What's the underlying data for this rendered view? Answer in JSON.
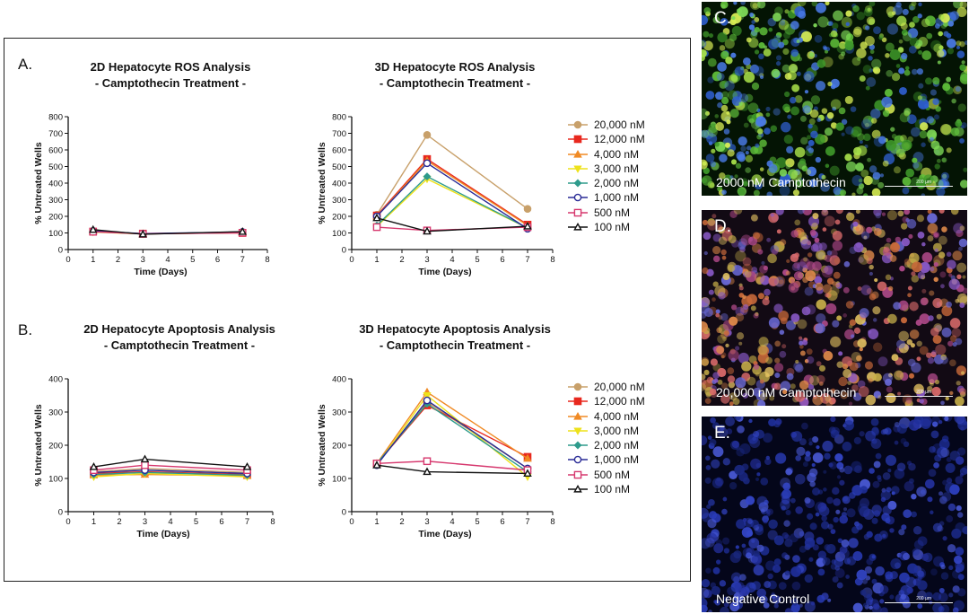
{
  "panels": {
    "a_label": "A.",
    "b_label": "B."
  },
  "chart_data": [
    {
      "id": "a2d",
      "type": "line",
      "title": "2D Hepatocyte ROS Analysis",
      "subtitle": "- Camptothecin Treatment -",
      "xlabel": "Time (Days)",
      "ylabel": "% Untreated Wells",
      "xlim": [
        0,
        8
      ],
      "ylim": [
        0,
        800
      ],
      "xticks": [
        0,
        1,
        2,
        3,
        4,
        5,
        6,
        7,
        8
      ],
      "yticks": [
        0,
        100,
        200,
        300,
        400,
        500,
        600,
        700,
        800
      ],
      "x": [
        1,
        3,
        7
      ],
      "series": [
        {
          "name": "20,000 nM",
          "values": [
            110,
            95,
            105
          ]
        },
        {
          "name": "12,000 nM",
          "values": [
            108,
            96,
            100
          ]
        },
        {
          "name": "4,000 nM",
          "values": [
            110,
            95,
            103
          ]
        },
        {
          "name": "3,000 nM",
          "values": [
            105,
            94,
            102
          ]
        },
        {
          "name": "2,000 nM",
          "values": [
            108,
            95,
            104
          ]
        },
        {
          "name": "1,000 nM",
          "values": [
            112,
            96,
            106
          ]
        },
        {
          "name": "500 nM",
          "values": [
            107,
            94,
            101
          ]
        },
        {
          "name": "100 nM",
          "values": [
            120,
            92,
            108
          ]
        }
      ]
    },
    {
      "id": "a3d",
      "type": "line",
      "title": "3D Hepatocyte ROS Analysis",
      "subtitle": "- Camptothecin Treatment -",
      "xlabel": "Time (Days)",
      "ylabel": "% Untreated Wells",
      "xlim": [
        0,
        8
      ],
      "ylim": [
        0,
        800
      ],
      "xticks": [
        0,
        1,
        2,
        3,
        4,
        5,
        6,
        7,
        8
      ],
      "yticks": [
        0,
        100,
        200,
        300,
        400,
        500,
        600,
        700,
        800
      ],
      "x": [
        1,
        3,
        7
      ],
      "series": [
        {
          "name": "20,000 nM",
          "values": [
            210,
            690,
            245
          ]
        },
        {
          "name": "12,000 nM",
          "values": [
            205,
            545,
            150
          ]
        },
        {
          "name": "4,000 nM",
          "values": [
            200,
            535,
            145
          ]
        },
        {
          "name": "3,000 nM",
          "values": [
            140,
            425,
            130
          ]
        },
        {
          "name": "2,000 nM",
          "values": [
            145,
            440,
            130
          ]
        },
        {
          "name": "1,000 nM",
          "values": [
            200,
            520,
            125
          ]
        },
        {
          "name": "500 nM",
          "values": [
            135,
            115,
            135
          ]
        },
        {
          "name": "100 nM",
          "values": [
            190,
            110,
            140
          ]
        }
      ]
    },
    {
      "id": "b2d",
      "type": "line",
      "title": "2D Hepatocyte Apoptosis Analysis",
      "subtitle": "- Camptothecin Treatment -",
      "xlabel": "Time (Days)",
      "ylabel": "% Untreated Wells",
      "xlim": [
        0,
        8
      ],
      "ylim": [
        0,
        400
      ],
      "xticks": [
        0,
        1,
        2,
        3,
        4,
        5,
        6,
        7,
        8
      ],
      "yticks": [
        0,
        100,
        200,
        300,
        400
      ],
      "x": [
        1,
        3,
        7
      ],
      "series": [
        {
          "name": "20,000 nM",
          "values": [
            120,
            130,
            118
          ]
        },
        {
          "name": "12,000 nM",
          "values": [
            115,
            120,
            112
          ]
        },
        {
          "name": "4,000 nM",
          "values": [
            110,
            112,
            108
          ]
        },
        {
          "name": "3,000 nM",
          "values": [
            105,
            115,
            105
          ]
        },
        {
          "name": "2,000 nM",
          "values": [
            112,
            118,
            110
          ]
        },
        {
          "name": "1,000 nM",
          "values": [
            118,
            125,
            115
          ]
        },
        {
          "name": "500 nM",
          "values": [
            125,
            140,
            125
          ]
        },
        {
          "name": "100 nM",
          "values": [
            135,
            158,
            135
          ]
        }
      ]
    },
    {
      "id": "b3d",
      "type": "line",
      "title": "3D Hepatocyte Apoptosis Analysis",
      "subtitle": "- Camptothecin Treatment -",
      "xlabel": "Time (Days)",
      "ylabel": "% Untreated Wells",
      "xlim": [
        0,
        8
      ],
      "ylim": [
        0,
        400
      ],
      "xticks": [
        0,
        1,
        2,
        3,
        4,
        5,
        6,
        7,
        8
      ],
      "yticks": [
        0,
        100,
        200,
        300,
        400
      ],
      "x": [
        1,
        3,
        7
      ],
      "series": [
        {
          "name": "20,000 nM",
          "values": [
            145,
            330,
            130
          ]
        },
        {
          "name": "12,000 nM",
          "values": [
            145,
            320,
            165
          ]
        },
        {
          "name": "4,000 nM",
          "values": [
            145,
            360,
            160
          ]
        },
        {
          "name": "3,000 nM",
          "values": [
            140,
            350,
            105
          ]
        },
        {
          "name": "2,000 nM",
          "values": [
            145,
            325,
            120
          ]
        },
        {
          "name": "1,000 nM",
          "values": [
            140,
            335,
            130
          ]
        },
        {
          "name": "500 nM",
          "values": [
            145,
            152,
            125
          ]
        },
        {
          "name": "100 nM",
          "values": [
            140,
            120,
            115
          ]
        }
      ]
    }
  ],
  "series_style": [
    {
      "name": "20,000 nM",
      "color": "#c8a06a",
      "marker": "circle"
    },
    {
      "name": "12,000 nM",
      "color": "#e8281e",
      "marker": "square"
    },
    {
      "name": "4,000 nM",
      "color": "#f08a24",
      "marker": "triangle"
    },
    {
      "name": "3,000 nM",
      "color": "#eee21a",
      "marker": "triangle-down"
    },
    {
      "name": "2,000 nM",
      "color": "#2e9b8c",
      "marker": "diamond"
    },
    {
      "name": "1,000 nM",
      "color": "#2a2b96",
      "marker": "circle-open"
    },
    {
      "name": "500 nM",
      "color": "#d6386e",
      "marker": "square-open"
    },
    {
      "name": "100 nM",
      "color": "#111111",
      "marker": "triangle-open"
    }
  ],
  "legend_labels": [
    "20,000 nM",
    "12,000 nM",
    "4,000 nM",
    "3,000 nM",
    "2,000 nM",
    "1,000 nM",
    "500 nM",
    "100 nM"
  ],
  "micrographs": [
    {
      "letter": "C.",
      "caption": "2000 nM Camptothecin",
      "scale": "200 µm",
      "tint": "green"
    },
    {
      "letter": "D.",
      "caption": "20,000 nM Camptothecin",
      "scale": "200 µm",
      "tint": "mixed"
    },
    {
      "letter": "E.",
      "caption": "Negative Control",
      "scale": "200 µm",
      "tint": "blue"
    }
  ]
}
